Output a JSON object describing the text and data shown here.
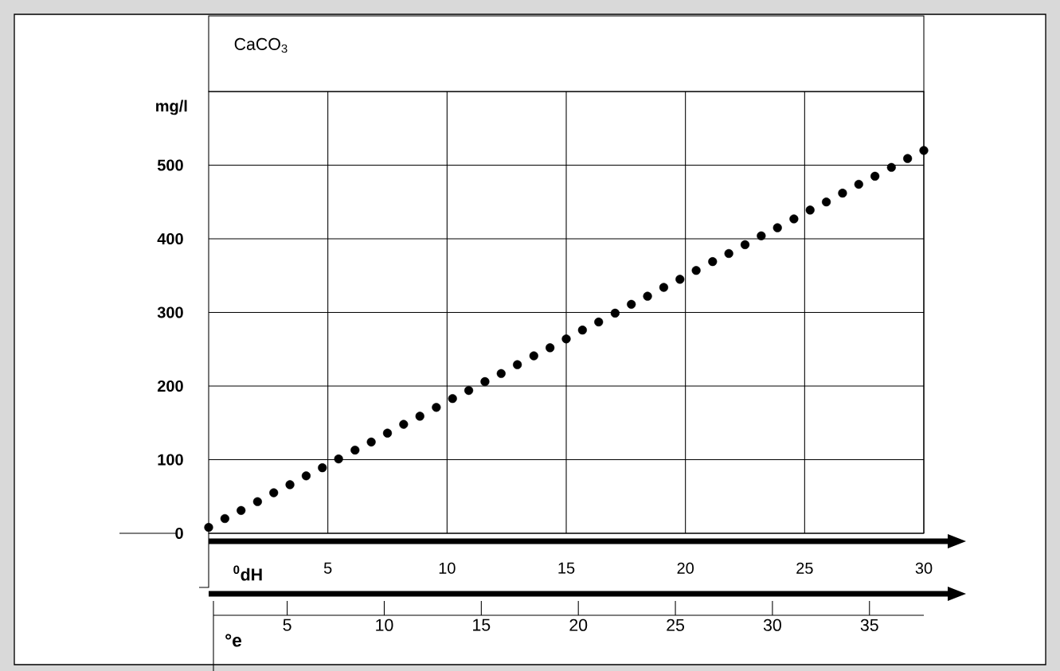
{
  "chart_data": {
    "type": "scatter",
    "title": "CaCO$_{3}$",
    "xlabel": "$^{0}$dH",
    "ylabel": "mg/l",
    "x2label": "°e",
    "x": [
      0,
      0.68,
      1.36,
      2.05,
      2.73,
      3.41,
      4.09,
      4.77,
      5.45,
      6.14,
      6.82,
      7.5,
      8.18,
      8.86,
      9.55,
      10.23,
      10.91,
      11.59,
      12.27,
      12.95,
      13.64,
      14.32,
      15.0,
      15.68,
      16.36,
      17.05,
      17.73,
      18.41,
      19.09,
      19.77,
      20.45,
      21.14,
      21.82,
      22.5,
      23.18,
      23.86,
      24.55,
      25.23,
      25.91,
      26.59,
      27.27,
      27.95,
      28.64,
      29.32,
      30.0
    ],
    "values": [
      8,
      20,
      31,
      43,
      55,
      66,
      78,
      89,
      101,
      113,
      124,
      136,
      148,
      159,
      171,
      183,
      194,
      206,
      217,
      229,
      241,
      252,
      264,
      276,
      287,
      299,
      311,
      322,
      334,
      345,
      357,
      369,
      380,
      392,
      404,
      415,
      427,
      439,
      450,
      462,
      474,
      485,
      497,
      509,
      520
    ],
    "color": "#000000",
    "marker": "circle",
    "grid": true,
    "xlim": [
      0,
      30
    ],
    "xticks": [
      5,
      10,
      15,
      20,
      25,
      30
    ],
    "ylim": [
      0,
      600
    ],
    "yticks": [
      0,
      100,
      200,
      300,
      400,
      500
    ],
    "x2lim": [
      1.2,
      37.8
    ],
    "x2ticks": [
      5,
      10,
      15,
      20,
      25,
      30,
      35
    ]
  }
}
